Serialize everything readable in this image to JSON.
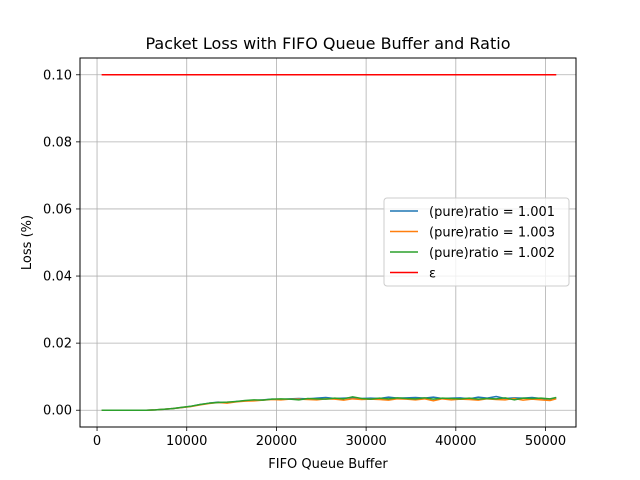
{
  "chart_data": {
    "type": "line",
    "title": "Packet Loss with FIFO Queue Buffer and Ratio",
    "xlabel": "FIFO Queue Buffer",
    "ylabel": "Loss (%)",
    "xlim": [
      -1900,
      53400
    ],
    "ylim": [
      -0.005,
      0.105
    ],
    "xticks": [
      0,
      10000,
      20000,
      30000,
      40000,
      50000
    ],
    "xtick_labels": [
      "0",
      "10000",
      "20000",
      "30000",
      "40000",
      "50000"
    ],
    "yticks": [
      0.0,
      0.02,
      0.04,
      0.06,
      0.08,
      0.1
    ],
    "ytick_labels": [
      "0.00",
      "0.02",
      "0.04",
      "0.06",
      "0.08",
      "0.10"
    ],
    "grid": true,
    "legend_position": "center-right",
    "x": [
      512,
      1500,
      2500,
      3500,
      4500,
      5500,
      6500,
      7500,
      8500,
      9500,
      10500,
      11500,
      12500,
      13500,
      14500,
      15500,
      16500,
      17500,
      18500,
      19500,
      20500,
      21500,
      22500,
      23500,
      24500,
      25500,
      26500,
      27500,
      28500,
      29500,
      30500,
      31500,
      32500,
      33500,
      34500,
      35500,
      36500,
      37500,
      38500,
      39500,
      40500,
      41500,
      42500,
      43500,
      44500,
      45500,
      46500,
      47500,
      48500,
      49500,
      50500,
      51200
    ],
    "series": [
      {
        "name": "(pure)ratio = 1.001",
        "color": "#1f77b4",
        "values": [
          0,
          0,
          0,
          0,
          0,
          0,
          0.0001,
          0.0003,
          0.0005,
          0.0008,
          0.0012,
          0.0017,
          0.0021,
          0.0024,
          0.0022,
          0.0026,
          0.0028,
          0.0029,
          0.0031,
          0.0033,
          0.0032,
          0.0034,
          0.0035,
          0.0034,
          0.0036,
          0.0038,
          0.0035,
          0.0036,
          0.0037,
          0.0035,
          0.0036,
          0.0035,
          0.0039,
          0.0036,
          0.0037,
          0.0038,
          0.0036,
          0.0039,
          0.0035,
          0.0036,
          0.0037,
          0.0034,
          0.0039,
          0.0036,
          0.0041,
          0.0035,
          0.0037,
          0.0036,
          0.0038,
          0.0035,
          0.0033,
          0.0037
        ]
      },
      {
        "name": "(pure)ratio = 1.003",
        "color": "#ff7f0e",
        "values": [
          0,
          0,
          0,
          0,
          0,
          0,
          0.0001,
          0.0003,
          0.0005,
          0.0008,
          0.0011,
          0.0016,
          0.002,
          0.0023,
          0.0021,
          0.0025,
          0.0027,
          0.0028,
          0.003,
          0.0032,
          0.0031,
          0.0033,
          0.0033,
          0.0032,
          0.0031,
          0.0034,
          0.0033,
          0.003,
          0.0034,
          0.0032,
          0.0033,
          0.0032,
          0.003,
          0.0034,
          0.0033,
          0.0031,
          0.0034,
          0.0028,
          0.0034,
          0.0031,
          0.0033,
          0.0032,
          0.003,
          0.0034,
          0.0032,
          0.0031,
          0.0035,
          0.003,
          0.0033,
          0.0031,
          0.0029,
          0.0034
        ]
      },
      {
        "name": "(pure)ratio = 1.002",
        "color": "#2ca02c",
        "values": [
          0,
          0,
          0,
          0,
          0,
          0,
          0.0001,
          0.0003,
          0.0005,
          0.0009,
          0.0012,
          0.0017,
          0.0021,
          0.0023,
          0.0024,
          0.0026,
          0.0029,
          0.0031,
          0.003,
          0.0033,
          0.0034,
          0.0033,
          0.0031,
          0.0035,
          0.0034,
          0.0033,
          0.0036,
          0.0034,
          0.004,
          0.0035,
          0.0033,
          0.0036,
          0.0034,
          0.0037,
          0.0035,
          0.0034,
          0.0037,
          0.0033,
          0.0036,
          0.0035,
          0.0034,
          0.0036,
          0.0033,
          0.0035,
          0.0034,
          0.0037,
          0.0031,
          0.0036,
          0.0035,
          0.0036,
          0.0034,
          0.0038
        ]
      },
      {
        "name": "ε",
        "color": "#ff0000",
        "x": [
          512,
          51200
        ],
        "values": [
          0.1,
          0.1
        ]
      }
    ]
  }
}
